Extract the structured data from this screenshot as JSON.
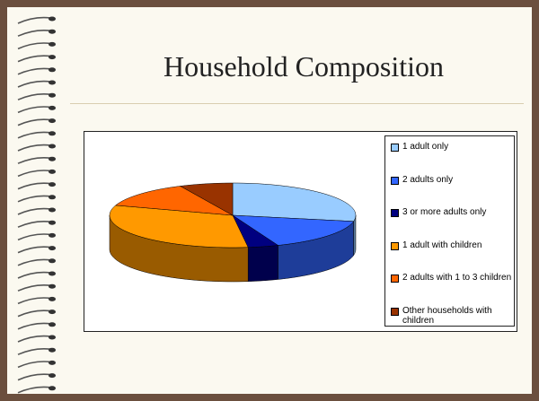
{
  "chart_data": {
    "type": "pie",
    "title": "Household Composition",
    "categories": [
      "1 adult only",
      "2 adults only",
      "3 or more adults only",
      "1 adult with children",
      "2 adults with 1 to 3 children",
      "Other households with children"
    ],
    "values": [
      28,
      16,
      4,
      32,
      13,
      7
    ],
    "colors": [
      "#99ccff",
      "#3366ff",
      "#000080",
      "#ff9900",
      "#ff6600",
      "#993300"
    ]
  }
}
